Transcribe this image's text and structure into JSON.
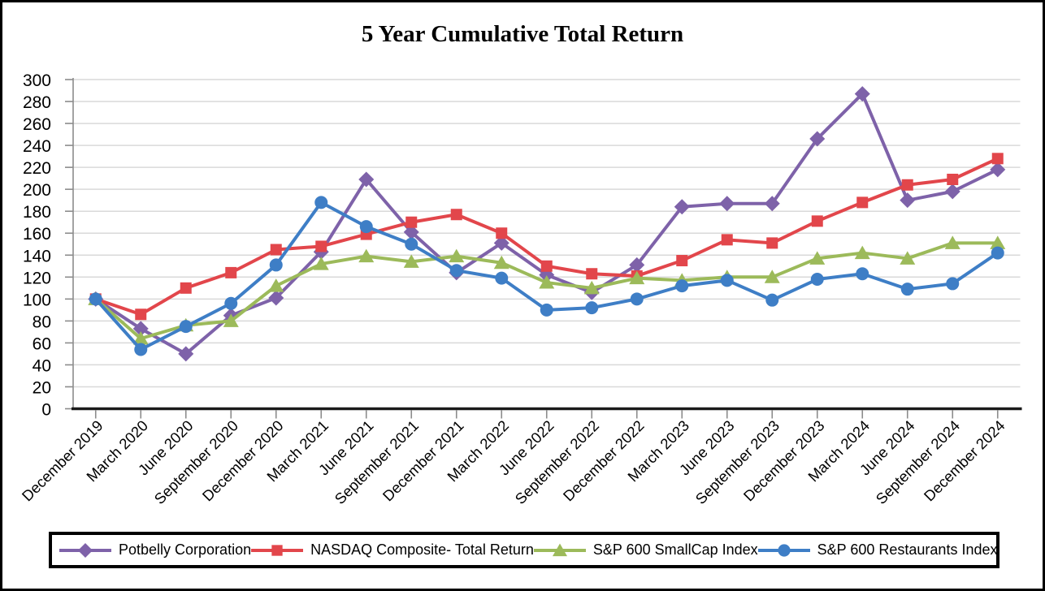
{
  "chart_data": {
    "type": "line",
    "title": "5 Year Cumulative Total Return",
    "categories": [
      "December 2019",
      "March 2020",
      "June 2020",
      "September 2020",
      "December 2020",
      "March 2021",
      "June 2021",
      "September 2021",
      "December 2021",
      "March 2022",
      "June 2022",
      "September 2022",
      "December 2022",
      "March 2023",
      "June 2023",
      "September 2023",
      "December 2023",
      "March 2024",
      "June 2024",
      "September 2024",
      "December 2024"
    ],
    "series": [
      {
        "name": "Potbelly Corporation",
        "marker": "diamond",
        "color": "#7E62A9",
        "values": [
          100,
          73,
          50,
          85,
          101,
          143,
          209,
          161,
          124,
          151,
          122,
          106,
          131,
          184,
          187,
          187,
          246,
          287,
          190,
          198,
          218
        ]
      },
      {
        "name": "NASDAQ Composite- Total Return",
        "marker": "square",
        "color": "#E2464B",
        "values": [
          100,
          86,
          110,
          124,
          145,
          148,
          159,
          170,
          177,
          160,
          130,
          123,
          121,
          135,
          154,
          151,
          171,
          188,
          204,
          209,
          228
        ]
      },
      {
        "name": "S&P 600 SmallCap Index",
        "marker": "triangle",
        "color": "#9CBA5A",
        "values": [
          100,
          64,
          76,
          80,
          112,
          132,
          139,
          134,
          139,
          133,
          115,
          110,
          119,
          117,
          120,
          120,
          137,
          142,
          137,
          151,
          151
        ]
      },
      {
        "name": "S&P 600 Restaurants Index",
        "marker": "circle",
        "color": "#3E7EC6",
        "values": [
          100,
          54,
          75,
          96,
          131,
          188,
          166,
          150,
          126,
          119,
          90,
          92,
          100,
          112,
          117,
          99,
          118,
          123,
          109,
          114,
          142
        ]
      }
    ],
    "ylim": [
      0,
      300
    ],
    "ytick_step": 20,
    "yticks": [
      0,
      20,
      40,
      60,
      80,
      100,
      120,
      140,
      160,
      180,
      200,
      220,
      240,
      260,
      280,
      300
    ],
    "grid": "horizontal",
    "legend_position": "bottom",
    "x_label_rotation": -45
  },
  "colors": {
    "grid": "#D9D9D9",
    "axis": "#8C8C8C",
    "x_axis_line": "#1A1A1A",
    "text": "#000000",
    "legend_border": "#000000",
    "background": "#FFFFFF"
  }
}
